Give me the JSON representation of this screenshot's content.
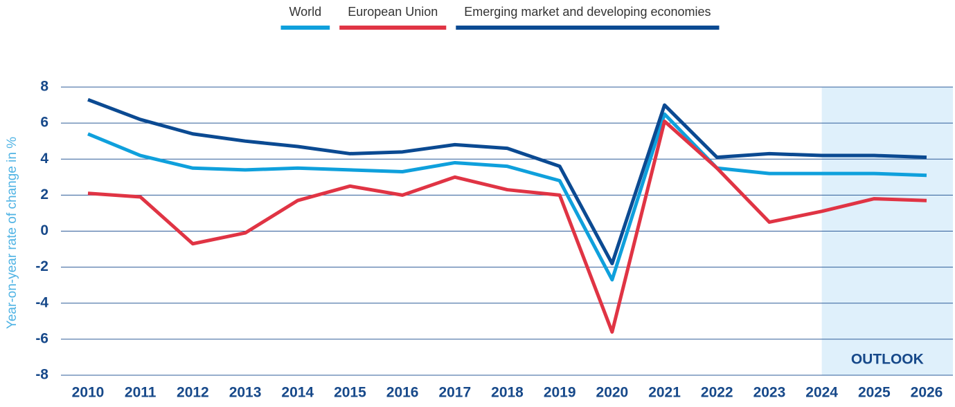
{
  "chart_data": {
    "type": "line",
    "y_label": "Year-on-year rate of change in %",
    "categories": [
      "2010",
      "2011",
      "2012",
      "2013",
      "2014",
      "2015",
      "2016",
      "2017",
      "2018",
      "2019",
      "2020",
      "2021",
      "2022",
      "2023",
      "2024",
      "2025",
      "2026"
    ],
    "series": [
      {
        "name": "World",
        "color": "#0fa0dc",
        "values": [
          5.4,
          4.2,
          3.5,
          3.4,
          3.5,
          3.4,
          3.3,
          3.8,
          3.6,
          2.8,
          -2.7,
          6.5,
          3.5,
          3.2,
          3.2,
          3.2,
          3.1
        ]
      },
      {
        "name": "European Union",
        "color": "#e03444",
        "values": [
          2.1,
          1.9,
          -0.7,
          -0.1,
          1.7,
          2.5,
          2.0,
          3.0,
          2.3,
          2.0,
          -5.6,
          6.1,
          3.5,
          0.5,
          1.1,
          1.8,
          1.7
        ]
      },
      {
        "name": "Emerging market and developing economies",
        "color": "#0b4a92",
        "values": [
          7.3,
          6.2,
          5.4,
          5.0,
          4.7,
          4.3,
          4.4,
          4.8,
          4.6,
          3.6,
          -1.8,
          7.0,
          4.1,
          4.3,
          4.2,
          4.2,
          4.1
        ]
      }
    ],
    "outlook": {
      "label": "OUTLOOK",
      "start": "2024",
      "color": "#dff0fb"
    },
    "ylim": [
      -8,
      8
    ],
    "yticks": [
      -8,
      -6,
      -4,
      -2,
      0,
      2,
      4,
      6,
      8
    ],
    "grid": true,
    "legend": "top"
  }
}
